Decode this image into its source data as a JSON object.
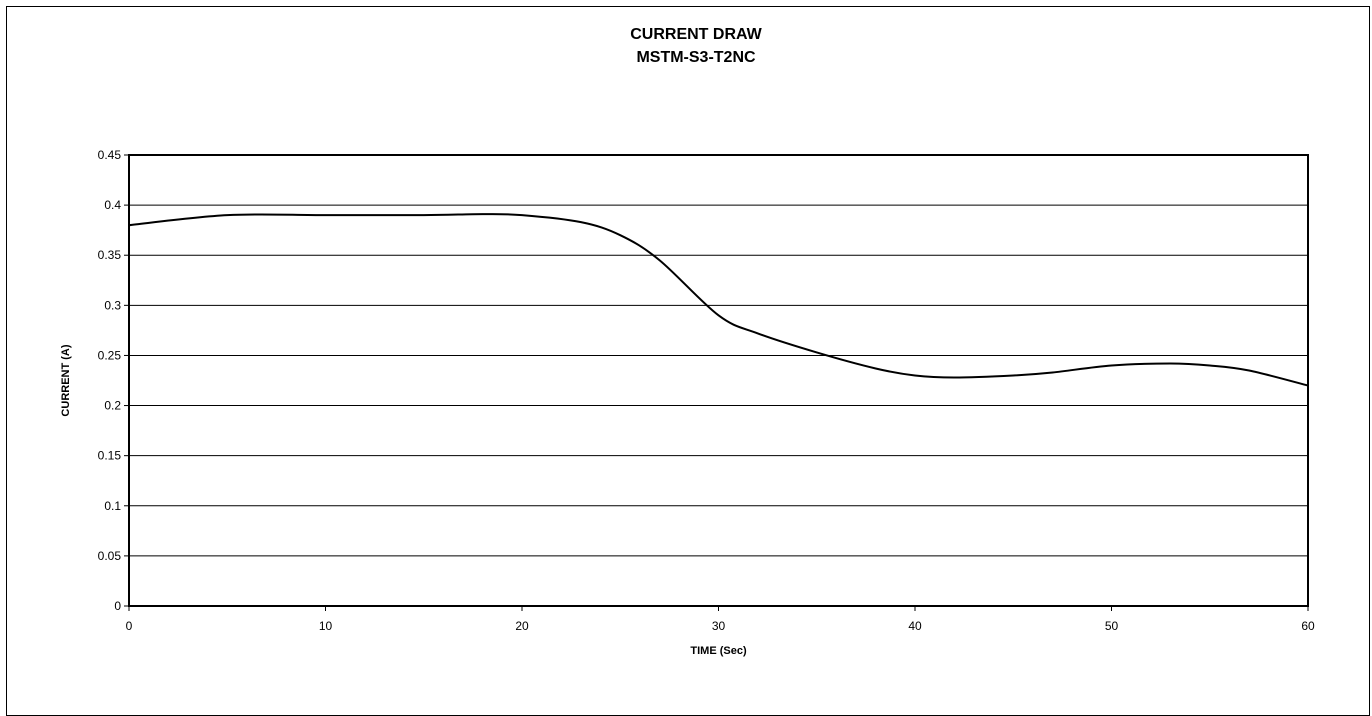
{
  "chart_data": {
    "type": "line",
    "title": "CURRENT DRAW",
    "subtitle": "MSTM-S3-T2NC",
    "xlabel": "TIME (Sec)",
    "ylabel": "CURRENT (A)",
    "xlim": [
      0,
      60
    ],
    "ylim": [
      0,
      0.45
    ],
    "x_ticks": [
      "0",
      "10",
      "20",
      "30",
      "40",
      "50",
      "60"
    ],
    "y_ticks": [
      "0",
      "0.05",
      "0.1",
      "0.15",
      "0.2",
      "0.25",
      "0.3",
      "0.35",
      "0.4",
      "0.45"
    ],
    "grid": true,
    "legend": "none",
    "series": [
      {
        "line_color": "#000000",
        "x": [
          0,
          5,
          10,
          15,
          18,
          20,
          23,
          25,
          27,
          30,
          32,
          35,
          38,
          40,
          42,
          45,
          47,
          50,
          53,
          55,
          57,
          60
        ],
        "y": [
          0.38,
          0.39,
          0.39,
          0.39,
          0.391,
          0.39,
          0.383,
          0.37,
          0.345,
          0.29,
          0.272,
          0.253,
          0.237,
          0.23,
          0.228,
          0.23,
          0.233,
          0.24,
          0.242,
          0.24,
          0.235,
          0.22
        ]
      }
    ]
  }
}
